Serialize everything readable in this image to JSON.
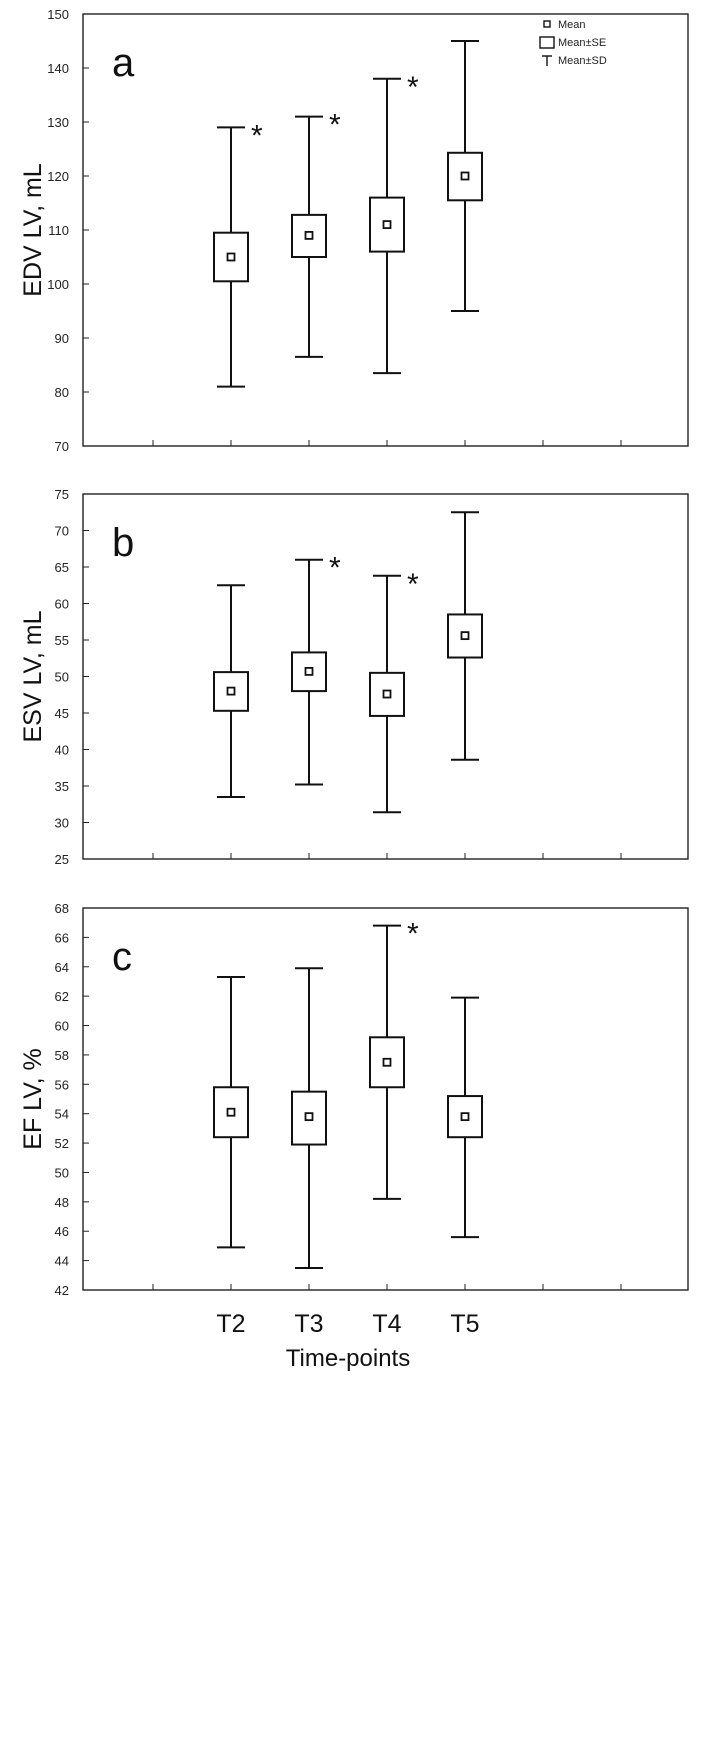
{
  "chart_data": [
    {
      "type": "box",
      "panel_letter": "a",
      "ylabel": "EDV LV, mL",
      "ylim": [
        70,
        150
      ],
      "yticks": [
        70,
        80,
        90,
        100,
        110,
        120,
        130,
        140,
        150
      ],
      "categories": [
        "T2",
        "T3",
        "T4",
        "T5"
      ],
      "mean": [
        105,
        109,
        111,
        120
      ],
      "se_low": [
        100.5,
        105,
        106,
        115.5
      ],
      "se_high": [
        109.5,
        112.8,
        116,
        124.3
      ],
      "sd_low": [
        81,
        86.5,
        83.5,
        95
      ],
      "sd_high": [
        129,
        131,
        138,
        145
      ],
      "significant": [
        true,
        true,
        true,
        false
      ],
      "marker": "*",
      "legend": {
        "items": [
          {
            "icon": "mean-square",
            "label": "Mean"
          },
          {
            "icon": "se-box",
            "label": "Mean±SE"
          },
          {
            "icon": "sd-whisker",
            "label": "Mean±SD"
          }
        ]
      }
    },
    {
      "type": "box",
      "panel_letter": "b",
      "ylabel": "ESV LV, mL",
      "ylim": [
        25,
        75
      ],
      "yticks": [
        25,
        30,
        35,
        40,
        45,
        50,
        55,
        60,
        65,
        70,
        75
      ],
      "categories": [
        "T2",
        "T3",
        "T4",
        "T5"
      ],
      "mean": [
        48,
        50.7,
        47.6,
        55.6
      ],
      "se_low": [
        45.3,
        48,
        44.6,
        52.6
      ],
      "se_high": [
        50.6,
        53.3,
        50.5,
        58.5
      ],
      "sd_low": [
        33.5,
        35.2,
        31.4,
        38.6
      ],
      "sd_high": [
        62.5,
        66,
        63.8,
        72.5
      ],
      "significant": [
        false,
        true,
        true,
        false
      ],
      "marker": "*"
    },
    {
      "type": "box",
      "panel_letter": "c",
      "ylabel": "EF LV, %",
      "ylim": [
        42,
        68
      ],
      "yticks": [
        42,
        44,
        46,
        48,
        50,
        52,
        54,
        56,
        58,
        60,
        62,
        64,
        66,
        68
      ],
      "categories": [
        "T2",
        "T3",
        "T4",
        "T5"
      ],
      "mean": [
        54.1,
        53.8,
        57.5,
        53.8
      ],
      "se_low": [
        52.4,
        51.9,
        55.8,
        52.4
      ],
      "se_high": [
        55.8,
        55.5,
        59.2,
        55.2
      ],
      "sd_low": [
        44.9,
        43.5,
        48.2,
        45.6
      ],
      "sd_high": [
        63.3,
        63.9,
        66.8,
        61.9
      ],
      "significant": [
        false,
        false,
        true,
        false
      ],
      "marker": "*",
      "xlabel": "Time-points"
    }
  ]
}
